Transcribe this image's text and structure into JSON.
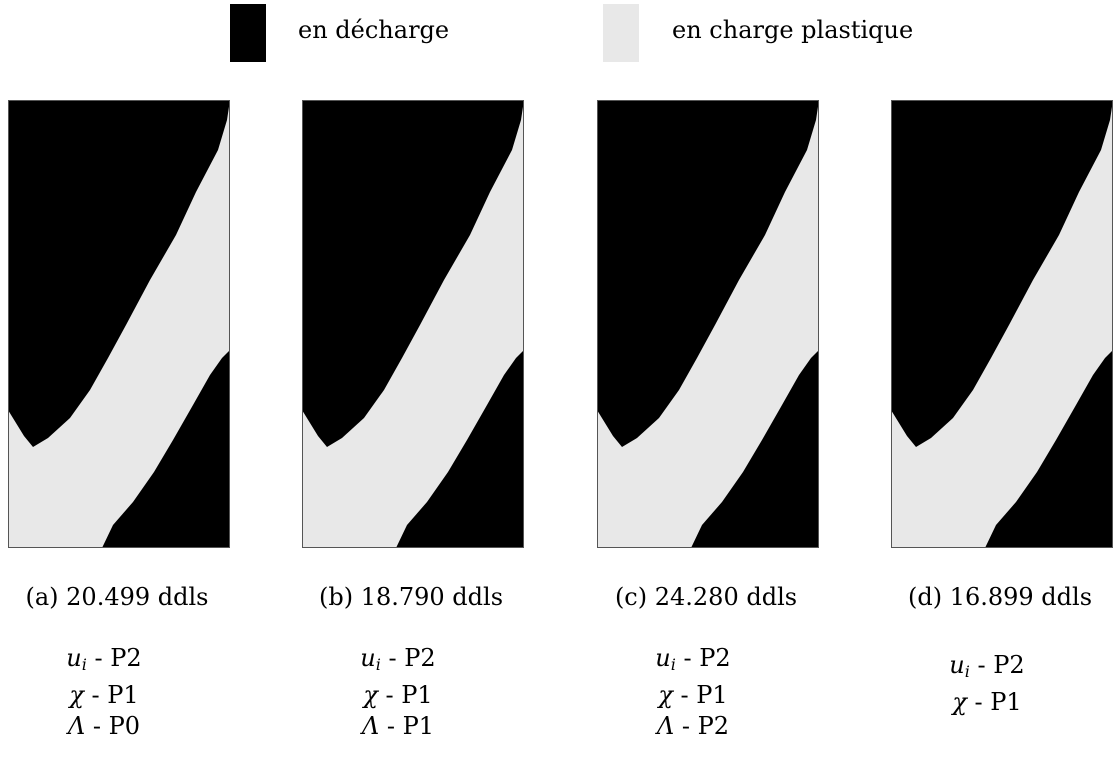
{
  "legend": [
    {
      "label": "en décharge",
      "color": "#000000"
    },
    {
      "label": "en charge plastique",
      "color": "#e8e8e8"
    }
  ],
  "colors": {
    "unloading": "#000000",
    "plastic": "#e8e8e8",
    "frame": "#555555"
  },
  "panels": [
    {
      "caption": "(a) 20.499 ddls",
      "discretization": [
        {
          "symbol": "u",
          "sub": "i",
          "order": " - P2"
        },
        {
          "symbol": "χ",
          "sub": "",
          "order": " - P1"
        },
        {
          "symbol": "Λ",
          "sub": "",
          "order": " - P0"
        }
      ]
    },
    {
      "caption": "(b) 18.790 ddls",
      "discretization": [
        {
          "symbol": "u",
          "sub": "i",
          "order": " - P2"
        },
        {
          "symbol": "χ",
          "sub": "",
          "order": " - P1"
        },
        {
          "symbol": "Λ",
          "sub": "",
          "order": " - P1"
        }
      ]
    },
    {
      "caption": "(c) 24.280 ddls",
      "discretization": [
        {
          "symbol": "u",
          "sub": "i",
          "order": " - P2"
        },
        {
          "symbol": "χ",
          "sub": "",
          "order": " - P1"
        },
        {
          "symbol": "Λ",
          "sub": "",
          "order": " - P2"
        }
      ]
    },
    {
      "caption": "(d) 16.899 ddls",
      "discretization": [
        {
          "symbol": "u",
          "sub": "i",
          "order": " - P2"
        },
        {
          "symbol": "χ",
          "sub": "",
          "order": " - P1"
        }
      ]
    }
  ]
}
